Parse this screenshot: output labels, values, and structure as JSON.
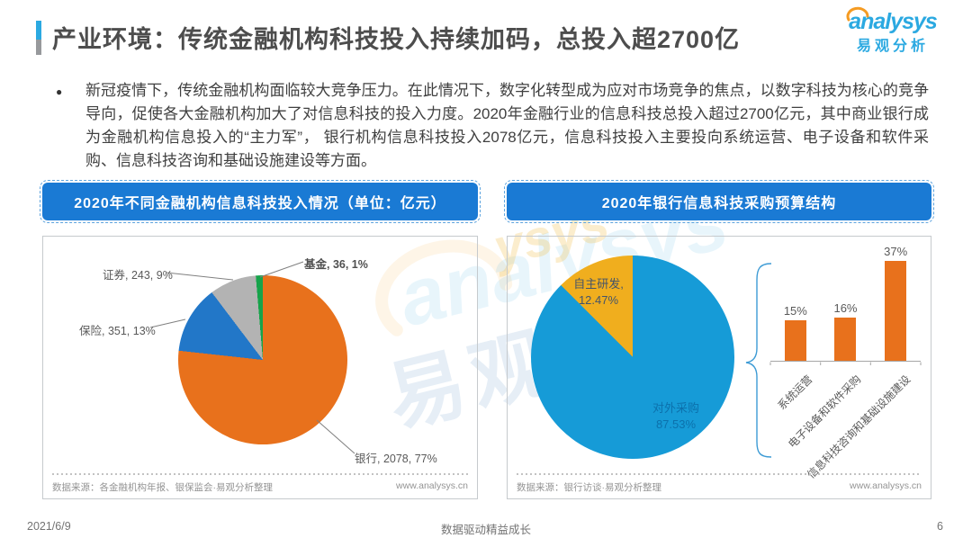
{
  "header": {
    "title": "产业环境：传统金融机构科技投入持续加码，总投入超2700亿",
    "logo": {
      "brand": "analysys",
      "cn": "易观分析"
    }
  },
  "intro": {
    "bullet": "●",
    "text": "新冠疫情下，传统金融机构面临较大竞争压力。在此情况下，数字化转型成为应对市场竞争的焦点，以数字科技为核心的竞争导向，促使各大金融机构加大了对信息科技的投入力度。2020年金融行业的信息科技总投入超过2700亿元，其中商业银行成为金融机构信息投入的“主力军”， 银行机构信息科技投入2078亿元，信息科技投入主要投向系统运营、电子设备和软件采购、信息科技咨询和基础设施建设等方面。"
  },
  "chart_data": [
    {
      "type": "pie",
      "title": "2020年不同金融机构信息科技投入情况（单位：亿元）",
      "labels": [
        "银行",
        "保险",
        "证券",
        "基金"
      ],
      "values": [
        2078,
        351,
        243,
        36
      ],
      "percents": [
        "77%",
        "13%",
        "9%",
        "1%"
      ],
      "colors": [
        "#e8711c",
        "#2277c8",
        "#b3b3b3",
        "#16a34a"
      ],
      "data_labels": [
        "银行, 2078, 77%",
        "保险, 351, 13%",
        "证券, 243, 9%",
        "基金, 36, 1%"
      ],
      "start_angle_deg": 0,
      "source": "数据来源：各金融机构年报、银保监会·易观分析整理",
      "website": "www.analysys.cn"
    },
    {
      "type": "pie",
      "title": "2020年银行信息科技采购预算结构",
      "labels": [
        "对外采购",
        "自主研发"
      ],
      "values": [
        87.53,
        12.47
      ],
      "colors": [
        "#169bd7",
        "#f0ae1e"
      ],
      "inner_labels": [
        {
          "line1": "对外采购",
          "line2": "87.53%"
        },
        {
          "line1": "自主研发,",
          "line2": "12.47%"
        }
      ],
      "start_angle_deg": 0,
      "source": "数据来源：银行访谈·易观分析整理",
      "website": "www.analysys.cn"
    },
    {
      "type": "bar",
      "categories": [
        "系统运营",
        "电子设备和软件采购",
        "信息科技咨询和基础设施建设"
      ],
      "values": [
        15,
        16,
        37
      ],
      "value_labels": [
        "15%",
        "16%",
        "37%"
      ],
      "color": "#e8711c",
      "ylim": [
        0,
        40
      ],
      "legend": "none",
      "grid": false
    }
  ],
  "watermark": {
    "brand": "analysys",
    "cn": "易观",
    "partial": "ysys"
  },
  "footer": {
    "date": "2021/6/9",
    "motto": "数据驱动精益成长",
    "page": "6"
  }
}
